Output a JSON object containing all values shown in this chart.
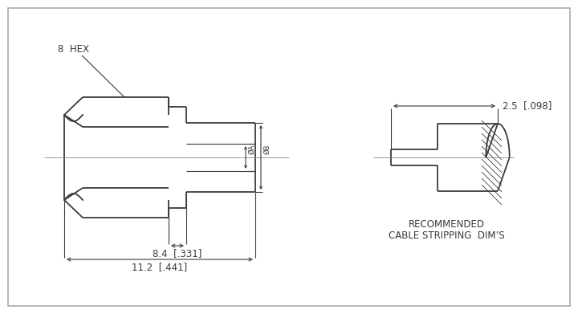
{
  "bg_color": "#ffffff",
  "line_color": "#3a3a3a",
  "lw": 1.3,
  "thin_lw": 0.8,
  "dim_lw": 0.8,
  "label_8hex": "8  HEX",
  "label_A": "ØA",
  "label_B": "ØB",
  "label_84": "8.4  [.331]",
  "label_112": "11.2  [.441]",
  "label_25": "2.5  [.098]",
  "label_rec1": "RECOMMENDED",
  "label_rec2": "CABLE STRIPPING  DIM’S",
  "font_size": 8.5,
  "small_font": 7.5
}
